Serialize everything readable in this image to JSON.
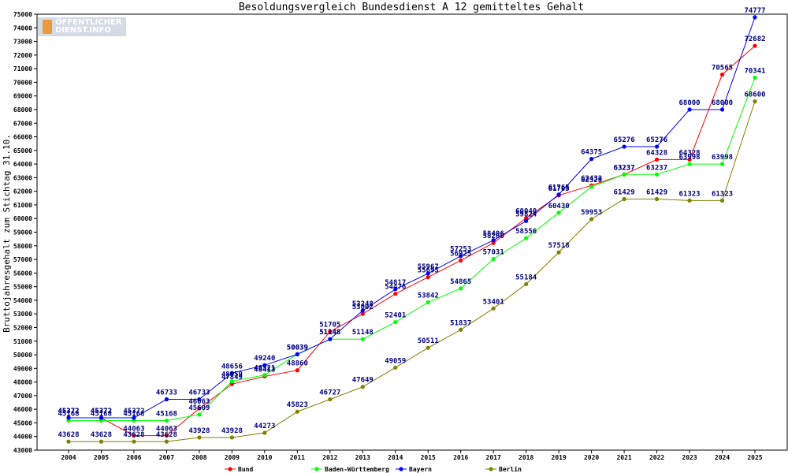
{
  "logo": {
    "line1": "ÖFFENTLICHER",
    "line2": "DIENST.INFO"
  },
  "chart_data": {
    "type": "line",
    "title": "Besoldungsvergleich Bundesdienst A 12 gemitteltes Gehalt",
    "xlabel": "",
    "ylabel": "Bruttojahresgehalt zum Stichtag 31.10.",
    "x": [
      2004,
      2005,
      2006,
      2007,
      2008,
      2009,
      2010,
      2011,
      2012,
      2013,
      2014,
      2015,
      2016,
      2017,
      2018,
      2019,
      2020,
      2021,
      2022,
      2023,
      2024,
      2025
    ],
    "ylim": [
      43000,
      75000
    ],
    "ytick_step": 1000,
    "grid": false,
    "legend": "bottom",
    "series": [
      {
        "name": "Bund",
        "color": "#ff0000",
        "values": [
          45372,
          45372,
          44063,
          44063,
          46063,
          47849,
          48413,
          48860,
          51705,
          53002,
          54476,
          55695,
          56925,
          58206,
          60040,
          61705,
          62432,
          63237,
          64328,
          64328,
          70565,
          72682
        ]
      },
      {
        "name": "Baden-Württemberg",
        "color": "#00ff00",
        "values": [
          45168,
          45168,
          45168,
          45168,
          45609,
          48059,
          48521,
          50039,
          51148,
          51148,
          52401,
          53842,
          54865,
          57031,
          58556,
          60430,
          62329,
          63237,
          63237,
          63998,
          63998,
          70341
        ]
      },
      {
        "name": "Bayern",
        "color": "#0000ff",
        "values": [
          45372,
          45372,
          45372,
          46733,
          46733,
          48656,
          49240,
          50039,
          51148,
          53248,
          54817,
          55967,
          57253,
          58406,
          59824,
          61765,
          64375,
          65276,
          65276,
          68000,
          68000,
          74777
        ]
      },
      {
        "name": "Berlin",
        "color": "#808000",
        "values": [
          43628,
          43628,
          43628,
          43628,
          43928,
          43928,
          44273,
          45823,
          46727,
          47649,
          49059,
          50511,
          51837,
          53401,
          55184,
          57518,
          59953,
          61429,
          61429,
          61323,
          61323,
          68600
        ]
      }
    ]
  }
}
